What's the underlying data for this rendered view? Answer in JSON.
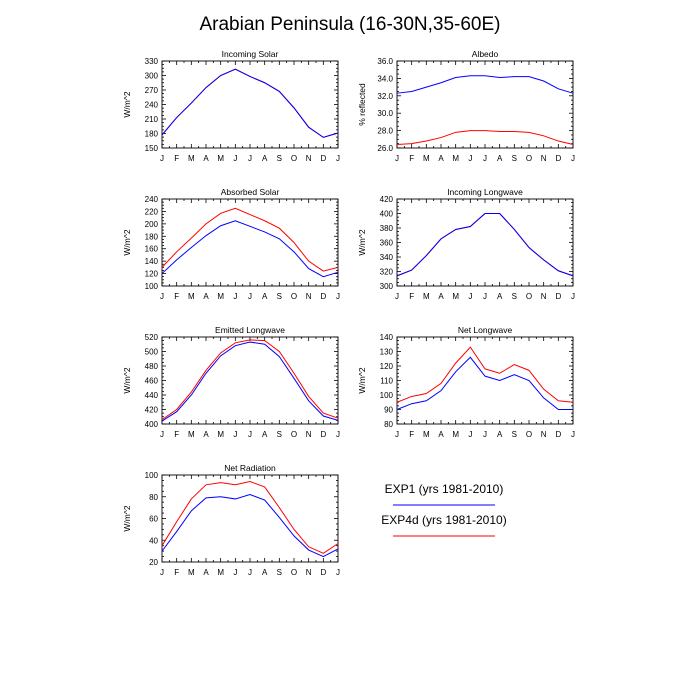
{
  "title": "Arabian Peninsula (16-30N,35-60E)",
  "colors": {
    "exp1": "#0000ff",
    "exp4d": "#ff0000"
  },
  "legend": [
    {
      "label": "EXP1 (yrs 1981-2010)",
      "color": "#0000ff"
    },
    {
      "label": "EXP4d (yrs 1981-2010)",
      "color": "#ff0000"
    }
  ],
  "chart_data": [
    {
      "type": "line",
      "title": "Incoming Solar",
      "ylabel": "W/m^2",
      "ylim": [
        150,
        330
      ],
      "yticks": [
        "150",
        "180",
        "210",
        "240",
        "270",
        "300",
        "330"
      ],
      "ytick_values": [
        150,
        180,
        210,
        240,
        270,
        300,
        330
      ],
      "categories": [
        "J",
        "F",
        "M",
        "A",
        "M",
        "J",
        "J",
        "A",
        "S",
        "O",
        "N",
        "D",
        "J"
      ],
      "series": [
        {
          "name": "EXP1 (yrs 1981-2010)",
          "color": "#0000ff",
          "values": [
            177,
            213,
            243,
            275,
            300,
            313,
            298,
            285,
            267,
            233,
            193,
            172,
            181
          ]
        },
        {
          "name": "EXP4d (yrs 1981-2010)",
          "color": "#ff0000",
          "values": [
            177,
            213,
            243,
            275,
            300,
            313,
            298,
            285,
            267,
            233,
            193,
            172,
            181
          ]
        }
      ]
    },
    {
      "type": "line",
      "title": "Albedo",
      "ylabel": "% reflected",
      "ylim": [
        26,
        36
      ],
      "yticks": [
        "26.0",
        "28.0",
        "30.0",
        "32.0",
        "34.0",
        "36.0"
      ],
      "ytick_values": [
        26,
        28,
        30,
        32,
        34,
        36
      ],
      "categories": [
        "J",
        "F",
        "M",
        "A",
        "M",
        "J",
        "J",
        "A",
        "S",
        "O",
        "N",
        "D",
        "J"
      ],
      "series": [
        {
          "name": "EXP1 (yrs 1981-2010)",
          "color": "#0000ff",
          "values": [
            32.3,
            32.5,
            33.0,
            33.5,
            34.1,
            34.3,
            34.3,
            34.1,
            34.2,
            34.2,
            33.7,
            32.8,
            32.3
          ]
        },
        {
          "name": "EXP4d (yrs 1981-2010)",
          "color": "#ff0000",
          "values": [
            26.4,
            26.5,
            26.8,
            27.2,
            27.8,
            28.0,
            28.0,
            27.9,
            27.9,
            27.8,
            27.4,
            26.8,
            26.4
          ]
        }
      ]
    },
    {
      "type": "line",
      "title": "Absorbed Solar",
      "ylabel": "W/m^2",
      "ylim": [
        100,
        240
      ],
      "yticks": [
        "100",
        "120",
        "140",
        "160",
        "180",
        "200",
        "220",
        "240"
      ],
      "ytick_values": [
        100,
        120,
        140,
        160,
        180,
        200,
        220,
        240
      ],
      "categories": [
        "J",
        "F",
        "M",
        "A",
        "M",
        "J",
        "J",
        "A",
        "S",
        "O",
        "N",
        "D",
        "J"
      ],
      "series": [
        {
          "name": "EXP1 (yrs 1981-2010)",
          "color": "#0000ff",
          "values": [
            120,
            142,
            162,
            181,
            197,
            205,
            196,
            187,
            176,
            155,
            128,
            115,
            122
          ]
        },
        {
          "name": "EXP4d (yrs 1981-2010)",
          "color": "#ff0000",
          "values": [
            130,
            155,
            177,
            200,
            217,
            225,
            215,
            205,
            193,
            170,
            140,
            124,
            130
          ]
        }
      ]
    },
    {
      "type": "line",
      "title": "Incoming Longwave",
      "ylabel": "W/m^2",
      "ylim": [
        300,
        420
      ],
      "yticks": [
        "300",
        "320",
        "340",
        "360",
        "380",
        "400",
        "420"
      ],
      "ytick_values": [
        300,
        320,
        340,
        360,
        380,
        400,
        420
      ],
      "categories": [
        "J",
        "F",
        "M",
        "A",
        "M",
        "J",
        "J",
        "A",
        "S",
        "O",
        "N",
        "D",
        "J"
      ],
      "series": [
        {
          "name": "EXP1 (yrs 1981-2010)",
          "color": "#0000ff",
          "values": [
            314,
            322,
            342,
            365,
            378,
            382,
            400,
            400,
            378,
            353,
            336,
            321,
            314
          ]
        },
        {
          "name": "EXP4d (yrs 1981-2010)",
          "color": "#ff0000",
          "values": [
            314,
            322,
            342,
            365,
            378,
            382,
            400,
            400,
            378,
            353,
            336,
            321,
            314
          ]
        }
      ]
    },
    {
      "type": "line",
      "title": "Emitted Longwave",
      "ylabel": "W/m^2",
      "ylim": [
        400,
        520
      ],
      "yticks": [
        "400",
        "420",
        "440",
        "460",
        "480",
        "500",
        "520"
      ],
      "ytick_values": [
        400,
        420,
        440,
        460,
        480,
        500,
        520
      ],
      "categories": [
        "J",
        "F",
        "M",
        "A",
        "M",
        "J",
        "J",
        "A",
        "S",
        "O",
        "N",
        "D",
        "J"
      ],
      "series": [
        {
          "name": "EXP1 (yrs 1981-2010)",
          "color": "#0000ff",
          "values": [
            404,
            417,
            440,
            470,
            494,
            508,
            513,
            510,
            493,
            463,
            432,
            411,
            405
          ]
        },
        {
          "name": "EXP4d (yrs 1981-2010)",
          "color": "#ff0000",
          "values": [
            406,
            420,
            444,
            474,
            498,
            512,
            516,
            515,
            500,
            470,
            438,
            415,
            408
          ]
        }
      ]
    },
    {
      "type": "line",
      "title": "Net Longwave",
      "ylabel": "W/m^2",
      "ylim": [
        80,
        140
      ],
      "yticks": [
        "80",
        "90",
        "100",
        "110",
        "120",
        "130",
        "140"
      ],
      "ytick_values": [
        80,
        90,
        100,
        110,
        120,
        130,
        140
      ],
      "categories": [
        "J",
        "F",
        "M",
        "A",
        "M",
        "J",
        "J",
        "A",
        "S",
        "O",
        "N",
        "D",
        "J"
      ],
      "series": [
        {
          "name": "EXP1 (yrs 1981-2010)",
          "color": "#0000ff",
          "values": [
            90,
            94,
            96,
            103,
            116,
            126,
            113,
            110,
            114,
            110,
            98,
            90,
            90
          ]
        },
        {
          "name": "EXP4d (yrs 1981-2010)",
          "color": "#ff0000",
          "values": [
            95,
            99,
            101,
            108,
            122,
            133,
            118,
            115,
            121,
            117,
            104,
            96,
            95
          ]
        }
      ]
    },
    {
      "type": "line",
      "title": "Net Radiation",
      "ylabel": "W/m^2",
      "ylim": [
        20,
        100
      ],
      "yticks": [
        "20",
        "40",
        "60",
        "80",
        "100"
      ],
      "ytick_values": [
        20,
        40,
        60,
        80,
        100
      ],
      "categories": [
        "J",
        "F",
        "M",
        "A",
        "M",
        "J",
        "J",
        "A",
        "S",
        "O",
        "N",
        "D",
        "J"
      ],
      "series": [
        {
          "name": "EXP1 (yrs 1981-2010)",
          "color": "#0000ff",
          "values": [
            30,
            48,
            67,
            79,
            80,
            78,
            82,
            77,
            61,
            44,
            31,
            25,
            32
          ]
        },
        {
          "name": "EXP4d (yrs 1981-2010)",
          "color": "#ff0000",
          "values": [
            35,
            57,
            78,
            91,
            93,
            91,
            94,
            89,
            70,
            50,
            34,
            28,
            37
          ]
        }
      ]
    }
  ]
}
